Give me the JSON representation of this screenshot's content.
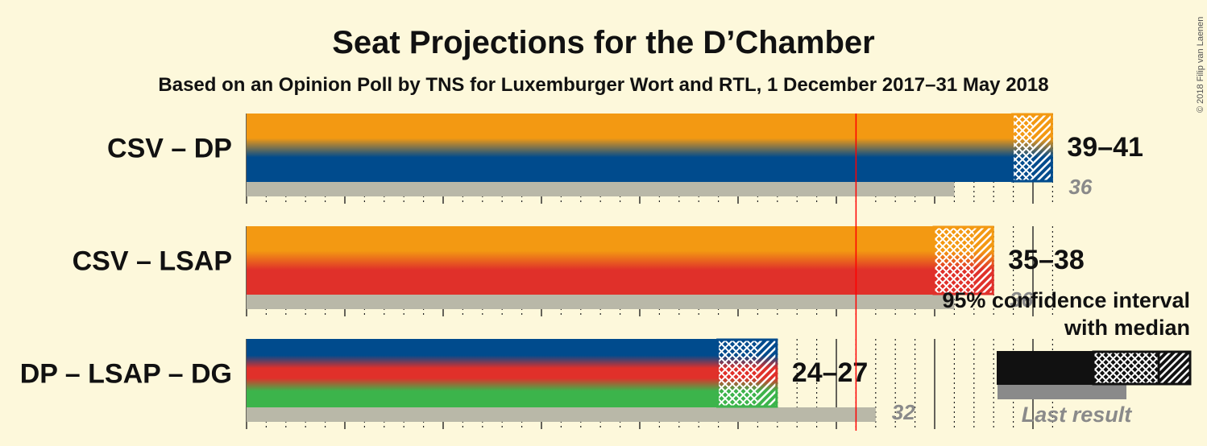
{
  "chart_data": {
    "type": "bar",
    "title": "Seat Projections for the D’Chamber",
    "subtitle": "Based on an Opinion Poll by TNS for Luxemburger Wort and RTL, 1 December 2017–31 May 2018",
    "copyright": "© 2018 Filip van Laenen",
    "majority_line": 31,
    "xlim": [
      0,
      41
    ],
    "categories": [
      "CSV – DP",
      "CSV – LSAP",
      "DP – LSAP – DG"
    ],
    "series": [
      {
        "name": "CSV – DP",
        "parties": [
          "CSV",
          "DP"
        ],
        "colors": [
          "#f39912",
          "#004b8d"
        ],
        "low": 39,
        "median": 40,
        "high": 41,
        "last_result": 36,
        "range_label": "39–41",
        "last_label": "36"
      },
      {
        "name": "CSV – LSAP",
        "parties": [
          "CSV",
          "LSAP"
        ],
        "colors": [
          "#f39912",
          "#e0302a"
        ],
        "low": 35,
        "median": 37,
        "high": 38,
        "last_result": 36,
        "range_label": "35–38",
        "last_label": "36"
      },
      {
        "name": "DP – LSAP – DG",
        "parties": [
          "DP",
          "LSAP",
          "DG"
        ],
        "colors": [
          "#004b8d",
          "#e0302a",
          "#3cb44b"
        ],
        "low": 24,
        "median": 26,
        "high": 27,
        "last_result": 32,
        "range_label": "24–27",
        "last_label": "32"
      }
    ],
    "legend": {
      "line1": "95% confidence interval",
      "line2": "with median",
      "last_result": "Last result"
    },
    "colors": {
      "background": "#fdf8db",
      "majority": "#ff0000",
      "last_result_bar": "#b9b8a8"
    }
  }
}
